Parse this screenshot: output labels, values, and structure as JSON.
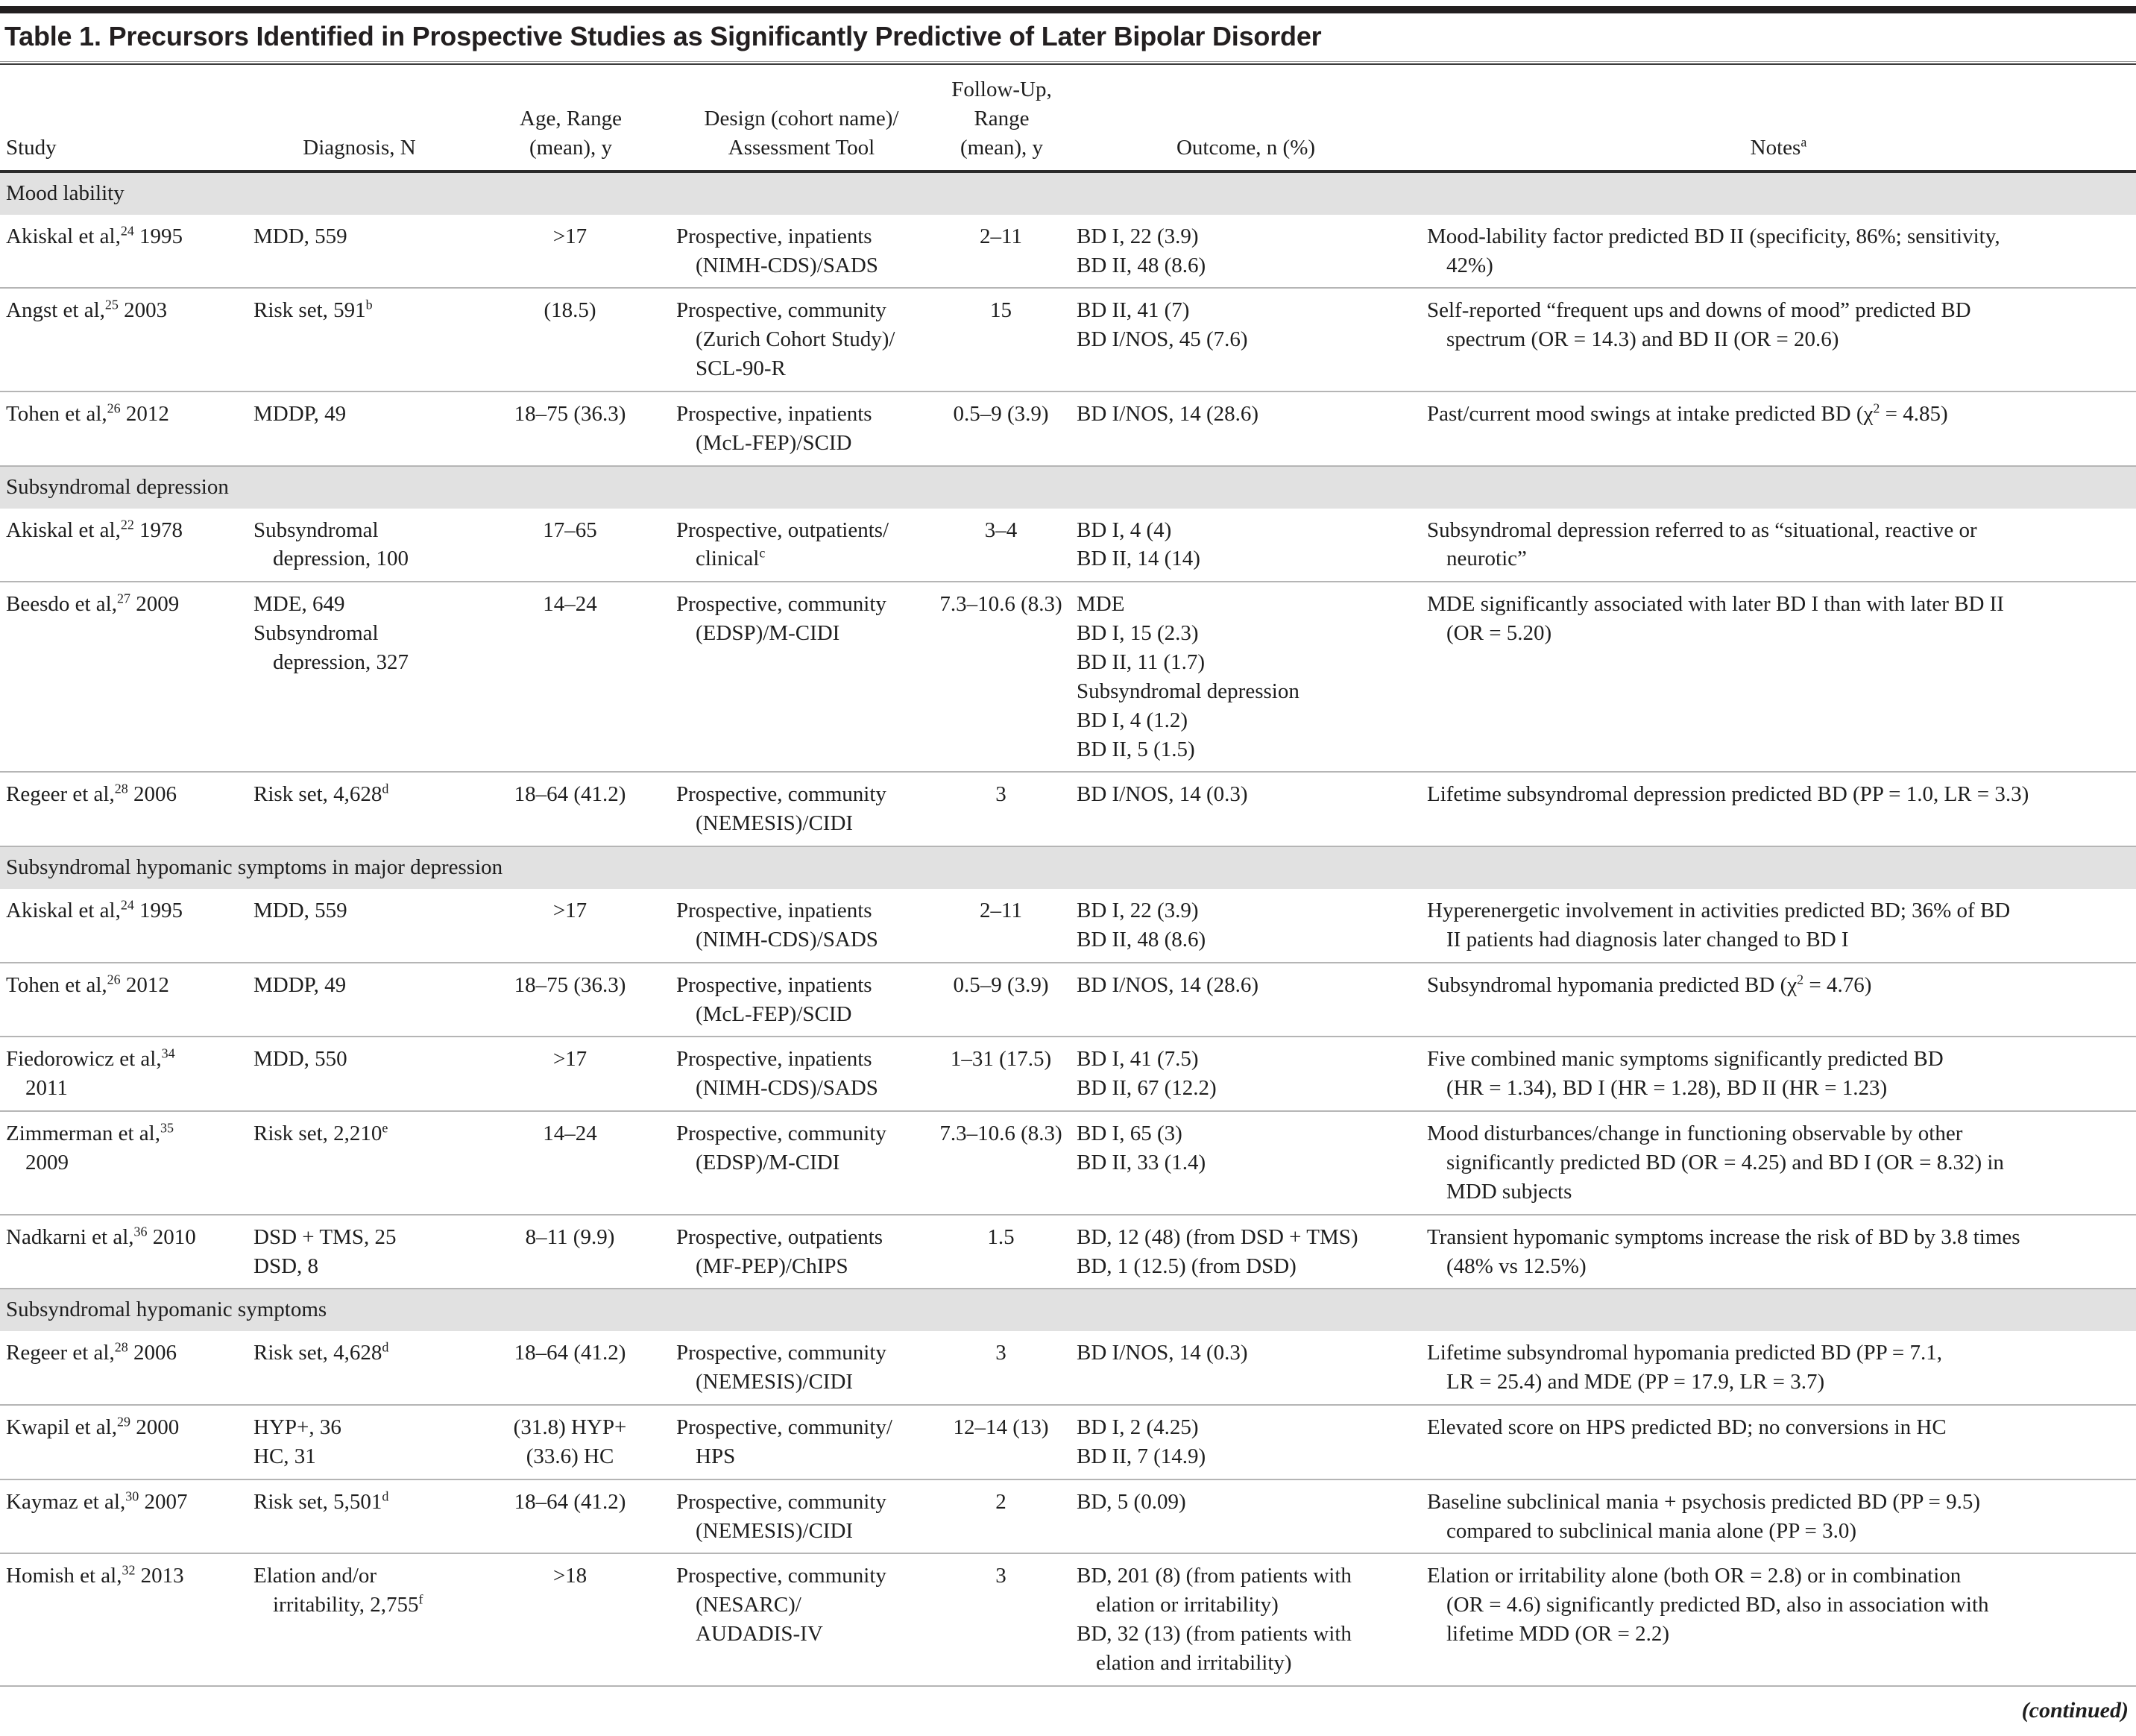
{
  "page": {
    "title": "Table 1. Precursors Identified in Prospective Studies as Significantly Predictive of Later Bipolar Disorder",
    "continued_label": "(continued)",
    "colors": {
      "title_bar": "#231f20",
      "section_background": "#e1e1e1",
      "header_rule": "#2b2b2b",
      "row_rule": "#b5b5b5",
      "text": "#1e1e1e"
    }
  },
  "table": {
    "columns": [
      {
        "key": "study",
        "label": "Study"
      },
      {
        "key": "diagnosis",
        "label": "Diagnosis, N"
      },
      {
        "key": "age",
        "label": "Age, Range\n(mean), y"
      },
      {
        "key": "design",
        "label": "Design (cohort name)/\nAssessment Tool"
      },
      {
        "key": "followup",
        "label": "Follow-Up,\nRange\n(mean), y"
      },
      {
        "key": "outcome",
        "label": "Outcome, n (%)"
      },
      {
        "key": "notes",
        "label": "Notes^{a}"
      }
    ],
    "sections": [
      {
        "label": "Mood lability",
        "rows": [
          {
            "study": "Akiskal et al,^{24} 1995",
            "diagnosis": [
              "MDD, 559"
            ],
            "age": [
              ">17"
            ],
            "design": "Prospective, inpatients\n(NIMH-CDS)/SADS",
            "followup": "2–11",
            "outcome": [
              "BD I, 22 (3.9)",
              "BD II, 48 (8.6)"
            ],
            "notes": "Mood-lability factor predicted BD II (specificity, 86%; sensitivity,\n42%)"
          },
          {
            "study": "Angst et al,^{25} 2003",
            "diagnosis": [
              "Risk set, 591^{b}"
            ],
            "age": [
              "(18.5)"
            ],
            "design": "Prospective, community\n(Zurich Cohort Study)/\nSCL-90-R",
            "followup": "15",
            "outcome": [
              "BD II, 41 (7)",
              "BD I/NOS, 45 (7.6)"
            ],
            "notes": "Self-reported “frequent ups and downs of mood” predicted BD\nspectrum (OR = 14.3) and BD II (OR = 20.6)"
          },
          {
            "study": "Tohen et al,^{26} 2012",
            "diagnosis": [
              "MDDP, 49"
            ],
            "age": [
              "18–75 (36.3)"
            ],
            "design": "Prospective, inpatients\n(McL-FEP)/SCID",
            "followup": "0.5–9 (3.9)",
            "outcome": [
              "BD I/NOS, 14 (28.6)"
            ],
            "notes": "Past/current mood swings at intake predicted BD (χ^{2} = 4.85)"
          }
        ]
      },
      {
        "label": "Subsyndromal depression",
        "rows": [
          {
            "study": "Akiskal et al,^{22} 1978",
            "diagnosis": [
              "Subsyndromal\ndepression, 100"
            ],
            "age": [
              "17–65"
            ],
            "design": "Prospective, outpatients/\nclinical^{c}",
            "followup": "3–4",
            "outcome": [
              "BD I, 4 (4)",
              "BD II, 14 (14)"
            ],
            "notes": "Subsyndromal depression referred to as “situational, reactive or\nneurotic”"
          },
          {
            "study": "Beesdo et al,^{27} 2009",
            "diagnosis": [
              "MDE, 649",
              "Subsyndromal\ndepression, 327"
            ],
            "age": [
              "14–24"
            ],
            "design": "Prospective, community\n(EDSP)/M-CIDI",
            "followup": "7.3–10.6 (8.3)",
            "outcome": [
              "MDE",
              "BD I, 15 (2.3)",
              "BD II, 11 (1.7)",
              "Subsyndromal depression",
              "BD I, 4 (1.2)",
              "BD II, 5 (1.5)"
            ],
            "notes": "MDE significantly associated with later BD I than with later BD II\n(OR = 5.20)"
          },
          {
            "study": "Regeer et al,^{28} 2006",
            "diagnosis": [
              "Risk set, 4,628^{d}"
            ],
            "age": [
              "18–64 (41.2)"
            ],
            "design": "Prospective, community\n(NEMESIS)/CIDI",
            "followup": "3",
            "outcome": [
              "BD I/NOS, 14 (0.3)"
            ],
            "notes": "Lifetime subsyndromal depression predicted BD (PP = 1.0, LR = 3.3)"
          }
        ]
      },
      {
        "label": "Subsyndromal hypomanic symptoms in major depression",
        "rows": [
          {
            "study": "Akiskal et al,^{24} 1995",
            "diagnosis": [
              "MDD, 559"
            ],
            "age": [
              ">17"
            ],
            "design": "Prospective, inpatients\n(NIMH-CDS)/SADS",
            "followup": "2–11",
            "outcome": [
              "BD I, 22 (3.9)",
              "BD II, 48 (8.6)"
            ],
            "notes": "Hyperenergetic involvement in activities predicted BD; 36% of BD\nII patients had diagnosis later changed to BD I"
          },
          {
            "study": "Tohen et al,^{26} 2012",
            "diagnosis": [
              "MDDP, 49"
            ],
            "age": [
              "18–75 (36.3)"
            ],
            "design": "Prospective, inpatients\n(McL-FEP)/SCID",
            "followup": "0.5–9 (3.9)",
            "outcome": [
              "BD I/NOS, 14 (28.6)"
            ],
            "notes": "Subsyndromal hypomania predicted BD (χ^{2} = 4.76)"
          },
          {
            "study": "Fiedorowicz et al,^{34}\n2011",
            "diagnosis": [
              "MDD, 550"
            ],
            "age": [
              ">17"
            ],
            "design": "Prospective, inpatients\n(NIMH-CDS)/SADS",
            "followup": "1–31 (17.5)",
            "outcome": [
              "BD I, 41 (7.5)",
              "BD II, 67 (12.2)"
            ],
            "notes": "Five combined manic symptoms significantly predicted BD\n(HR = 1.34), BD I (HR = 1.28), BD II (HR = 1.23)"
          },
          {
            "study": "Zimmerman et al,^{35}\n2009",
            "diagnosis": [
              "Risk set, 2,210^{e}"
            ],
            "age": [
              "14–24"
            ],
            "design": "Prospective, community\n(EDSP)/M-CIDI",
            "followup": "7.3–10.6 (8.3)",
            "outcome": [
              "BD I, 65 (3)",
              "BD II, 33 (1.4)"
            ],
            "notes": "Mood disturbances/change in functioning observable by other\nsignificantly predicted BD (OR = 4.25) and BD I (OR = 8.32) in\nMDD subjects"
          },
          {
            "study": "Nadkarni et al,^{36} 2010",
            "diagnosis": [
              "DSD + TMS, 25",
              "DSD, 8"
            ],
            "age": [
              "8–11 (9.9)"
            ],
            "design": "Prospective, outpatients\n(MF-PEP)/ChIPS",
            "followup": "1.5",
            "outcome": [
              "BD, 12 (48) (from DSD + TMS)",
              "BD, 1 (12.5) (from DSD)"
            ],
            "notes": "Transient hypomanic symptoms increase the risk of BD by 3.8 times\n(48% vs 12.5%)"
          }
        ]
      },
      {
        "label": "Subsyndromal hypomanic symptoms",
        "rows": [
          {
            "study": "Regeer et al,^{28} 2006",
            "diagnosis": [
              "Risk set, 4,628^{d}"
            ],
            "age": [
              "18–64 (41.2)"
            ],
            "design": "Prospective, community\n(NEMESIS)/CIDI",
            "followup": "3",
            "outcome": [
              "BD I/NOS, 14 (0.3)"
            ],
            "notes": "Lifetime subsyndromal hypomania predicted BD (PP = 7.1,\nLR = 25.4) and MDE (PP = 17.9, LR = 3.7)"
          },
          {
            "study": "Kwapil et al,^{29} 2000",
            "diagnosis": [
              "HYP+, 36",
              "HC, 31"
            ],
            "age": [
              "(31.8) HYP+",
              "(33.6) HC"
            ],
            "design": "Prospective, community/\nHPS",
            "followup": "12–14 (13)",
            "outcome": [
              "BD I, 2 (4.25)",
              "BD II, 7 (14.9)"
            ],
            "notes": "Elevated score on HPS predicted BD; no conversions in HC"
          },
          {
            "study": "Kaymaz et al,^{30} 2007",
            "diagnosis": [
              "Risk set, 5,501^{d}"
            ],
            "age": [
              "18–64 (41.2)"
            ],
            "design": "Prospective, community\n(NEMESIS)/CIDI",
            "followup": "2",
            "outcome": [
              "BD, 5 (0.09)"
            ],
            "notes": "Baseline subclinical mania + psychosis predicted BD (PP = 9.5)\ncompared to subclinical mania alone (PP = 3.0)"
          },
          {
            "study": "Homish et al,^{32} 2013",
            "diagnosis": [
              "Elation and/or\nirritability, 2,755^{f}"
            ],
            "age": [
              ">18"
            ],
            "design": "Prospective, community\n(NESARC)/\nAUDADIS-IV",
            "followup": "3",
            "outcome": [
              "BD, 201 (8) (from patients with\nelation or irritability)",
              "BD, 32 (13) (from patients with\nelation and irritability)"
            ],
            "notes": "Elation or irritability alone (both OR = 2.8) or in combination\n(OR = 4.6) significantly predicted BD, also in association with\nlifetime MDD (OR = 2.2)"
          }
        ]
      }
    ]
  }
}
